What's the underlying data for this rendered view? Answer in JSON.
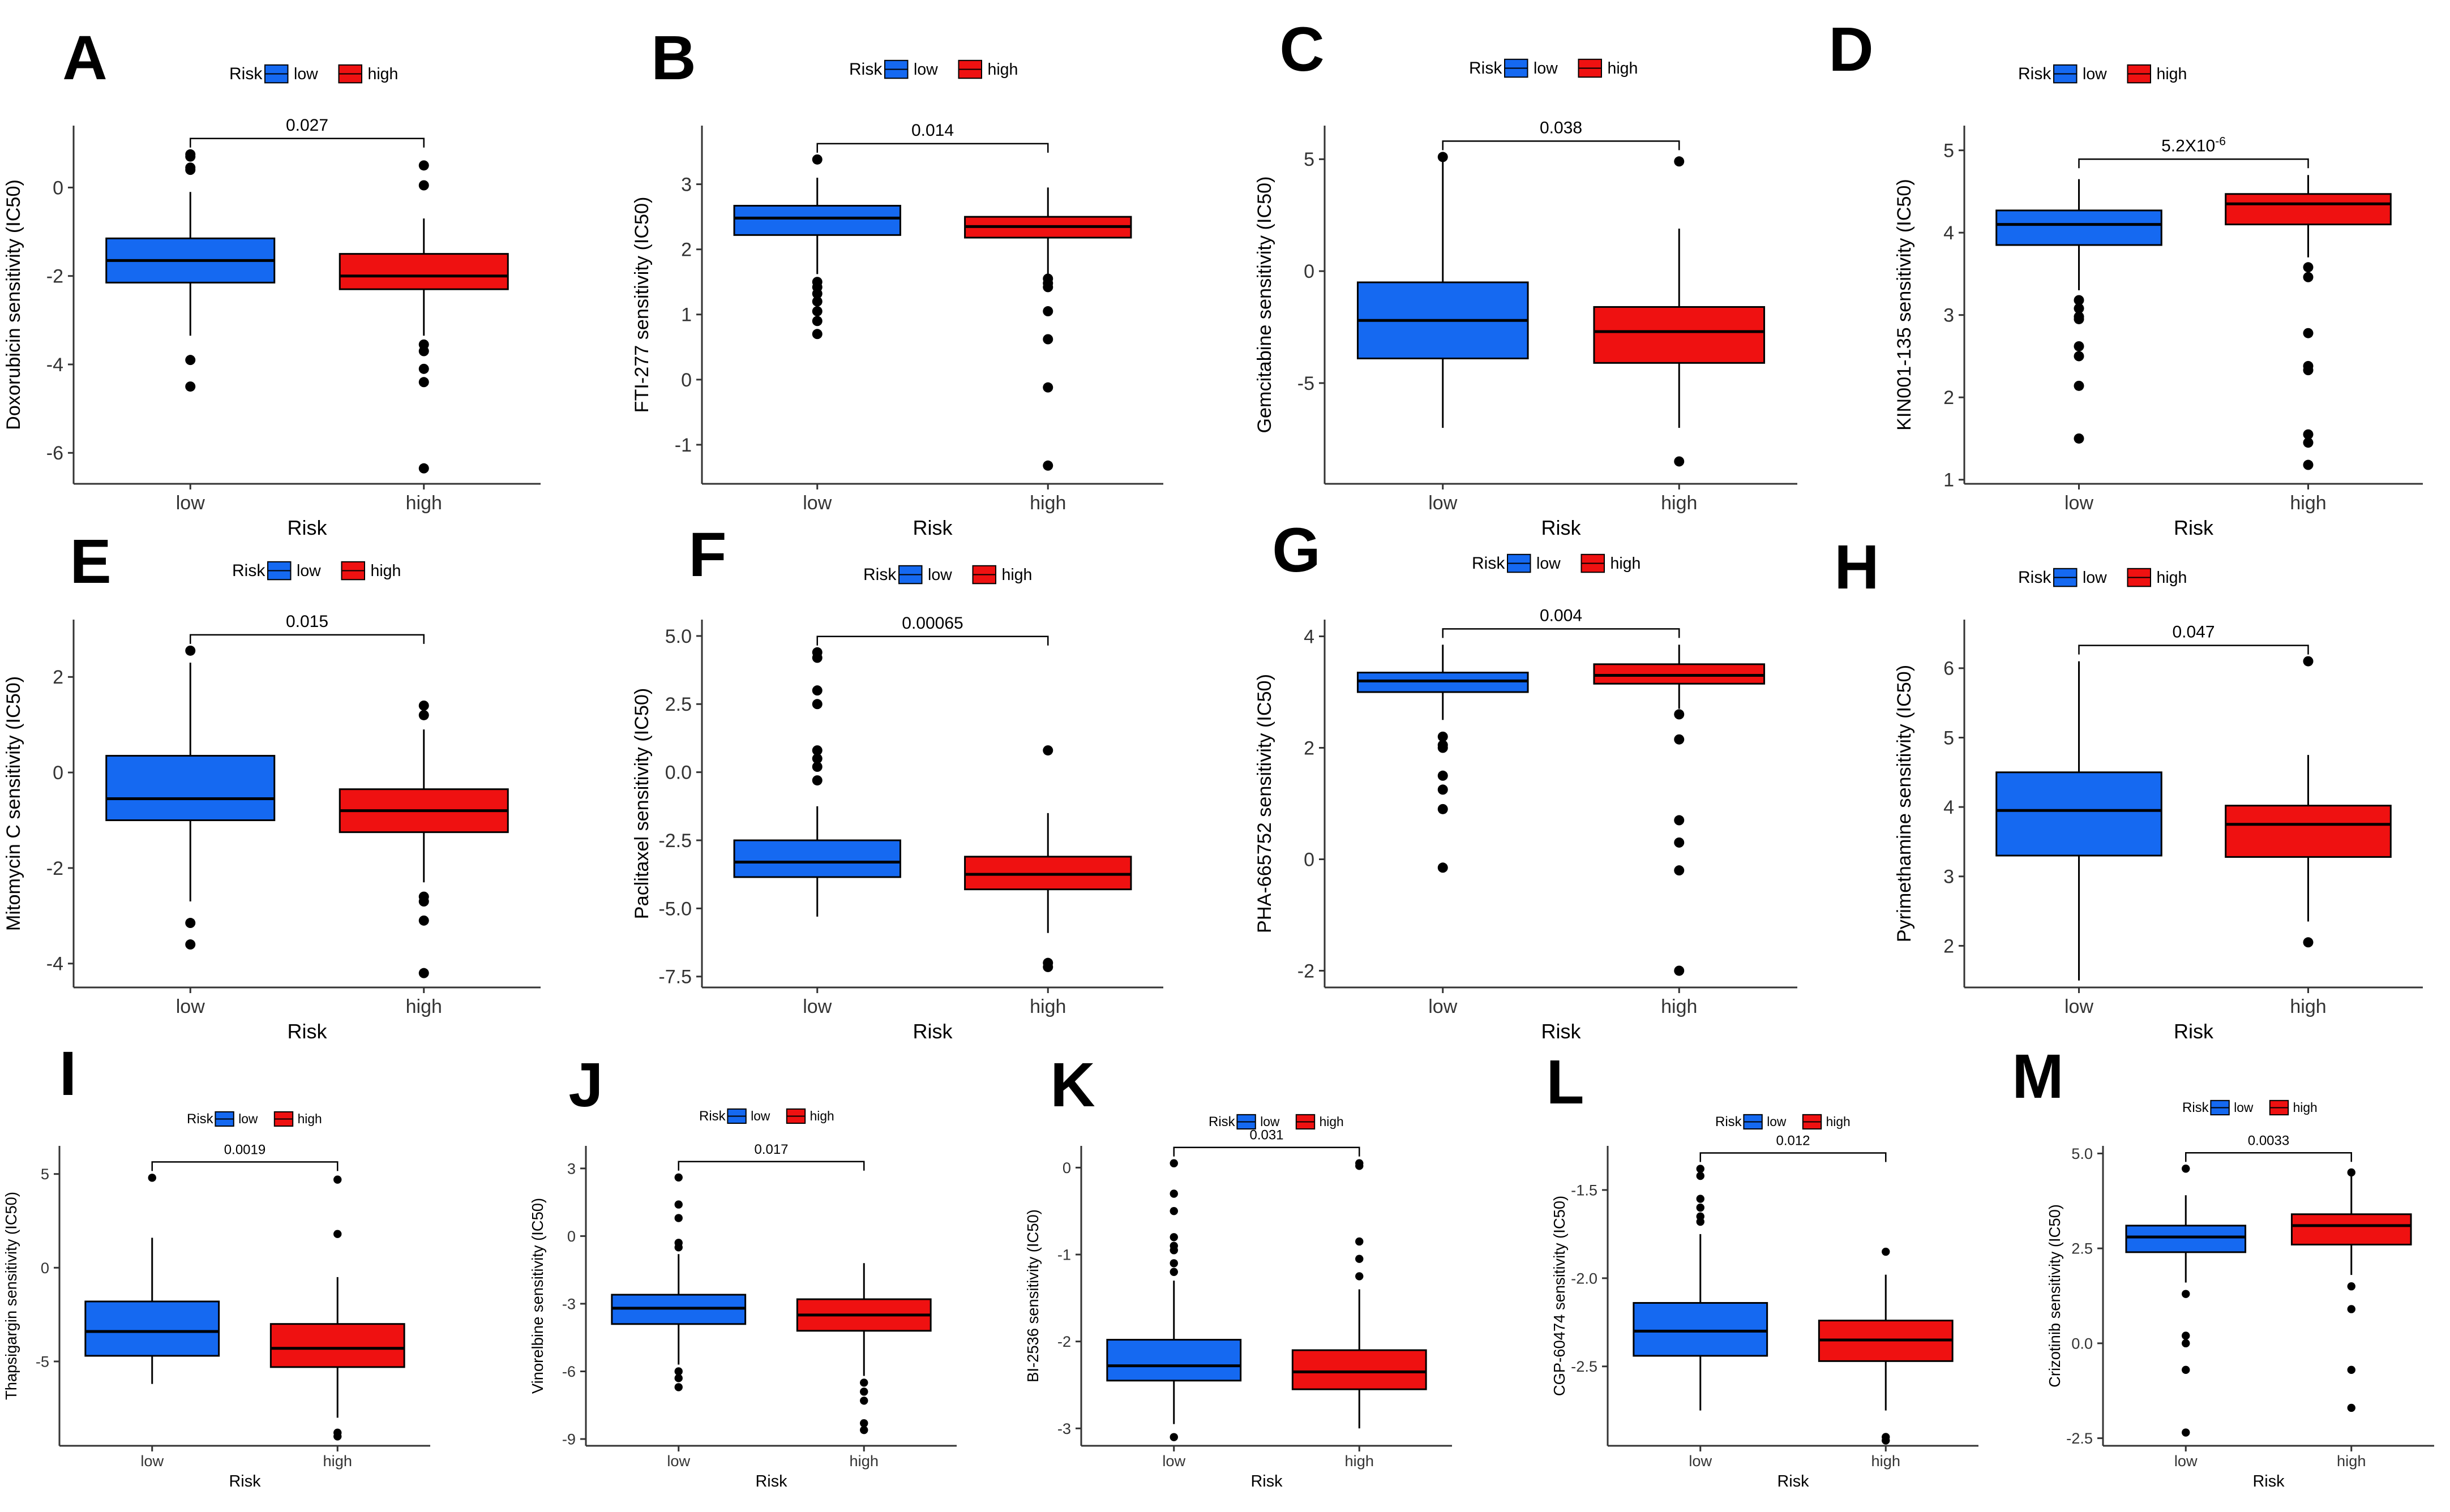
{
  "figure": {
    "colors": {
      "low": "#1569f1",
      "high": "#ef1111",
      "median": "#000000",
      "axis": "#333333"
    }
  },
  "chart_data": [
    {
      "panel": "A",
      "type": "box",
      "xlabel": "Risk",
      "ylabel": "Doxorubicin sensitivity (IC50)",
      "categories": [
        "low",
        "high"
      ],
      "ylim": [
        -6.7,
        1.4
      ],
      "yticks": [
        0,
        -2,
        -4,
        -6
      ],
      "legend": {
        "title": "Risk",
        "items": [
          "low",
          "high"
        ]
      },
      "pvalue": "0.027",
      "pvalue_exp": "",
      "series": [
        {
          "name": "low",
          "q1": -2.15,
          "median": -1.65,
          "q3": -1.15,
          "whisker_low": -3.35,
          "whisker_high": -0.1,
          "outliers": [
            0.75,
            0.7,
            0.45,
            0.4,
            -3.9,
            -4.5
          ]
        },
        {
          "name": "high",
          "q1": -2.3,
          "median": -2.0,
          "q3": -1.5,
          "whisker_low": -3.35,
          "whisker_high": -0.7,
          "outliers": [
            0.5,
            0.05,
            -3.55,
            -3.7,
            -4.1,
            -4.4,
            -6.35
          ]
        }
      ]
    },
    {
      "panel": "B",
      "type": "box",
      "xlabel": "Risk",
      "ylabel": "FTI-277 sensitivity (IC50)",
      "categories": [
        "low",
        "high"
      ],
      "ylim": [
        -1.6,
        3.9
      ],
      "yticks": [
        3,
        2,
        1,
        0,
        -1
      ],
      "legend": {
        "title": "Risk",
        "items": [
          "low",
          "high"
        ]
      },
      "pvalue": "0.014",
      "pvalue_exp": "",
      "series": [
        {
          "name": "low",
          "q1": 2.22,
          "median": 2.48,
          "q3": 2.67,
          "whisker_low": 1.62,
          "whisker_high": 3.1,
          "outliers": [
            3.38,
            1.5,
            1.42,
            1.32,
            1.2,
            1.05,
            0.9,
            0.7
          ]
        },
        {
          "name": "high",
          "q1": 2.18,
          "median": 2.35,
          "q3": 2.5,
          "whisker_low": 1.62,
          "whisker_high": 2.95,
          "outliers": [
            1.55,
            1.48,
            1.42,
            1.05,
            0.62,
            -0.12,
            -1.32
          ]
        }
      ]
    },
    {
      "panel": "C",
      "type": "box",
      "xlabel": "Risk",
      "ylabel": "Gemcitabine sensitivity (IC50)",
      "categories": [
        "low",
        "high"
      ],
      "ylim": [
        -9.5,
        6.5
      ],
      "yticks": [
        5,
        0,
        -5
      ],
      "legend": {
        "title": "Risk",
        "items": [
          "low",
          "high"
        ]
      },
      "pvalue": "0.038",
      "pvalue_exp": "",
      "series": [
        {
          "name": "low",
          "q1": -3.9,
          "median": -2.2,
          "q3": -0.5,
          "whisker_low": -7.0,
          "whisker_high": 4.9,
          "outliers": [
            5.1
          ]
        },
        {
          "name": "high",
          "q1": -4.1,
          "median": -2.7,
          "q3": -1.6,
          "whisker_low": -7.0,
          "whisker_high": 1.9,
          "outliers": [
            4.9,
            -8.5
          ]
        }
      ]
    },
    {
      "panel": "D",
      "type": "box",
      "xlabel": "Risk",
      "ylabel": "KIN001-135 sensitivity (IC50)",
      "categories": [
        "low",
        "high"
      ],
      "ylim": [
        0.95,
        5.3
      ],
      "yticks": [
        5,
        4,
        3,
        2,
        1
      ],
      "legend": {
        "title": "Risk",
        "items": [
          "low",
          "high"
        ]
      },
      "pvalue": "5.2X10",
      "pvalue_exp": "-6",
      "series": [
        {
          "name": "low",
          "q1": 3.85,
          "median": 4.1,
          "q3": 4.27,
          "whisker_low": 3.3,
          "whisker_high": 4.65,
          "outliers": [
            3.18,
            3.08,
            2.98,
            2.95,
            2.62,
            2.5,
            2.14,
            1.5
          ]
        },
        {
          "name": "high",
          "q1": 4.1,
          "median": 4.35,
          "q3": 4.47,
          "whisker_low": 3.7,
          "whisker_high": 4.7,
          "outliers": [
            3.58,
            3.46,
            2.78,
            2.38,
            2.33,
            1.55,
            1.45,
            1.18
          ]
        }
      ]
    },
    {
      "panel": "E",
      "type": "box",
      "xlabel": "Risk",
      "ylabel": "Mitomycin C sensitivity (IC50)",
      "categories": [
        "low",
        "high"
      ],
      "ylim": [
        -4.5,
        3.2
      ],
      "yticks": [
        2,
        0,
        -2,
        -4
      ],
      "legend": {
        "title": "Risk",
        "items": [
          "low",
          "high"
        ]
      },
      "pvalue": "0.015",
      "pvalue_exp": "",
      "series": [
        {
          "name": "low",
          "q1": -1.0,
          "median": -0.55,
          "q3": 0.35,
          "whisker_low": -2.7,
          "whisker_high": 2.3,
          "outliers": [
            2.55,
            -3.15,
            -3.6
          ]
        },
        {
          "name": "high",
          "q1": -1.25,
          "median": -0.8,
          "q3": -0.35,
          "whisker_low": -2.3,
          "whisker_high": 0.9,
          "outliers": [
            1.4,
            1.2,
            -2.6,
            -2.7,
            -3.1,
            -4.2
          ]
        }
      ]
    },
    {
      "panel": "F",
      "type": "box",
      "xlabel": "Risk",
      "ylabel": "Paclitaxel sensitivity (IC50)",
      "categories": [
        "low",
        "high"
      ],
      "ylim": [
        -7.9,
        5.6
      ],
      "yticks": [
        5.0,
        2.5,
        0.0,
        -2.5,
        -5.0,
        -7.5
      ],
      "legend": {
        "title": "Risk",
        "items": [
          "low",
          "high"
        ]
      },
      "pvalue": "0.00065",
      "pvalue_exp": "",
      "series": [
        {
          "name": "low",
          "q1": -3.85,
          "median": -3.3,
          "q3": -2.5,
          "whisker_low": -5.3,
          "whisker_high": -1.25,
          "outliers": [
            4.4,
            4.2,
            3.0,
            2.5,
            0.8,
            0.5,
            0.2,
            -0.3
          ]
        },
        {
          "name": "high",
          "q1": -4.3,
          "median": -3.75,
          "q3": -3.1,
          "whisker_low": -5.9,
          "whisker_high": -1.5,
          "outliers": [
            0.8,
            -7.0,
            -7.15
          ]
        }
      ]
    },
    {
      "panel": "G",
      "type": "box",
      "xlabel": "Risk",
      "ylabel": "PHA-665752 sensitivity (IC50)",
      "categories": [
        "low",
        "high"
      ],
      "ylim": [
        -2.3,
        4.3
      ],
      "yticks": [
        4,
        2,
        0,
        -2
      ],
      "legend": {
        "title": "Risk",
        "items": [
          "low",
          "high"
        ]
      },
      "pvalue": "0.004",
      "pvalue_exp": "",
      "series": [
        {
          "name": "low",
          "q1": 3.0,
          "median": 3.2,
          "q3": 3.35,
          "whisker_low": 2.5,
          "whisker_high": 3.85,
          "outliers": [
            2.2,
            2.05,
            2.0,
            1.5,
            1.25,
            0.9,
            -0.15
          ]
        },
        {
          "name": "high",
          "q1": 3.15,
          "median": 3.3,
          "q3": 3.5,
          "whisker_low": 2.7,
          "whisker_high": 3.85,
          "outliers": [
            2.6,
            2.15,
            0.7,
            0.3,
            -0.2,
            -2.0
          ]
        }
      ]
    },
    {
      "panel": "H",
      "type": "box",
      "xlabel": "Risk",
      "ylabel": "Pyrimethamine sensitivity (IC50)",
      "categories": [
        "low",
        "high"
      ],
      "ylim": [
        1.4,
        6.7
      ],
      "yticks": [
        6,
        5,
        4,
        3,
        2
      ],
      "legend": {
        "title": "Risk",
        "items": [
          "low",
          "high"
        ]
      },
      "pvalue": "0.047",
      "pvalue_exp": "",
      "series": [
        {
          "name": "low",
          "q1": 3.3,
          "median": 3.95,
          "q3": 4.5,
          "whisker_low": 1.5,
          "whisker_high": 6.1,
          "outliers": []
        },
        {
          "name": "high",
          "q1": 3.28,
          "median": 3.75,
          "q3": 4.02,
          "whisker_low": 2.35,
          "whisker_high": 4.75,
          "outliers": [
            6.1,
            2.05
          ]
        }
      ]
    },
    {
      "panel": "I",
      "type": "box",
      "xlabel": "Risk",
      "ylabel": "Thapsigargin sensitivity (IC50)",
      "categories": [
        "low",
        "high"
      ],
      "ylim": [
        -9.5,
        6.5
      ],
      "yticks": [
        5,
        0,
        -5
      ],
      "legend": {
        "title": "Risk",
        "items": [
          "low",
          "high"
        ]
      },
      "pvalue": "0.0019",
      "pvalue_exp": "",
      "series": [
        {
          "name": "low",
          "q1": -4.7,
          "median": -3.4,
          "q3": -1.8,
          "whisker_low": -6.2,
          "whisker_high": 1.6,
          "outliers": [
            4.8
          ]
        },
        {
          "name": "high",
          "q1": -5.3,
          "median": -4.3,
          "q3": -3.0,
          "whisker_low": -8.0,
          "whisker_high": -0.5,
          "outliers": [
            4.7,
            1.8,
            -8.8,
            -9.0
          ]
        }
      ]
    },
    {
      "panel": "J",
      "type": "box",
      "xlabel": "Risk",
      "ylabel": "Vinorelbine sensitivity (IC50)",
      "categories": [
        "low",
        "high"
      ],
      "ylim": [
        -9.3,
        4.0
      ],
      "yticks": [
        3,
        0,
        -3,
        -6,
        -9
      ],
      "legend": {
        "title": "Risk",
        "items": [
          "low",
          "high"
        ]
      },
      "pvalue": "0.017",
      "pvalue_exp": "",
      "series": [
        {
          "name": "low",
          "q1": -3.9,
          "median": -3.2,
          "q3": -2.6,
          "whisker_low": -5.7,
          "whisker_high": -0.8,
          "outliers": [
            2.6,
            1.4,
            0.8,
            -0.3,
            -0.5,
            -6.0,
            -6.3,
            -6.7
          ]
        },
        {
          "name": "high",
          "q1": -4.2,
          "median": -3.5,
          "q3": -2.8,
          "whisker_low": -6.2,
          "whisker_high": -1.2,
          "outliers": [
            -6.5,
            -6.9,
            -7.3,
            -8.3,
            -8.6
          ]
        }
      ]
    },
    {
      "panel": "K",
      "type": "box",
      "xlabel": "Risk",
      "ylabel": "BI-2536 sensitivity (IC50)",
      "categories": [
        "low",
        "high"
      ],
      "ylim": [
        -3.2,
        0.25
      ],
      "yticks": [
        0,
        -1,
        -2,
        -3
      ],
      "legend": {
        "title": "Risk",
        "items": [
          "low",
          "high"
        ]
      },
      "pvalue": "0.031",
      "pvalue_exp": "",
      "series": [
        {
          "name": "low",
          "q1": -2.45,
          "median": -2.28,
          "q3": -1.98,
          "whisker_low": -2.95,
          "whisker_high": -1.3,
          "outliers": [
            0.05,
            -0.3,
            -0.5,
            -0.8,
            -0.9,
            -0.95,
            -1.1,
            -1.2,
            -3.1
          ]
        },
        {
          "name": "high",
          "q1": -2.55,
          "median": -2.35,
          "q3": -2.1,
          "whisker_low": -3.0,
          "whisker_high": -1.4,
          "outliers": [
            0.05,
            0.02,
            -0.85,
            -1.05,
            -1.25
          ]
        }
      ]
    },
    {
      "panel": "L",
      "type": "box",
      "xlabel": "Risk",
      "ylabel": "CGP-60474 sensitivity (IC50)",
      "categories": [
        "low",
        "high"
      ],
      "ylim": [
        -2.95,
        -1.25
      ],
      "yticks": [
        -1.5,
        -2.0,
        -2.5
      ],
      "legend": {
        "title": "Risk",
        "items": [
          "low",
          "high"
        ]
      },
      "pvalue": "0.012",
      "pvalue_exp": "",
      "series": [
        {
          "name": "low",
          "q1": -2.44,
          "median": -2.3,
          "q3": -2.14,
          "whisker_low": -2.75,
          "whisker_high": -1.75,
          "outliers": [
            -1.38,
            -1.42,
            -1.55,
            -1.6,
            -1.65,
            -1.68
          ]
        },
        {
          "name": "high",
          "q1": -2.47,
          "median": -2.35,
          "q3": -2.24,
          "whisker_low": -2.75,
          "whisker_high": -1.98,
          "outliers": [
            -1.85,
            -2.9,
            -2.92
          ]
        }
      ]
    },
    {
      "panel": "M",
      "type": "box",
      "xlabel": "Risk",
      "ylabel": "Crizotinib sensitivity (IC50)",
      "categories": [
        "low",
        "high"
      ],
      "ylim": [
        -2.7,
        5.2
      ],
      "yticks": [
        5.0,
        2.5,
        0.0,
        -2.5
      ],
      "legend": {
        "title": "Risk",
        "items": [
          "low",
          "high"
        ]
      },
      "pvalue": "0.0033",
      "pvalue_exp": "",
      "series": [
        {
          "name": "low",
          "q1": 2.4,
          "median": 2.8,
          "q3": 3.1,
          "whisker_low": 1.6,
          "whisker_high": 3.9,
          "outliers": [
            4.6,
            1.3,
            0.2,
            0.0,
            -0.7,
            -2.35
          ]
        },
        {
          "name": "high",
          "q1": 2.6,
          "median": 3.1,
          "q3": 3.4,
          "whisker_low": 1.8,
          "whisker_high": 4.5,
          "outliers": [
            4.5,
            1.5,
            0.9,
            -0.7,
            -1.7
          ]
        }
      ]
    }
  ]
}
